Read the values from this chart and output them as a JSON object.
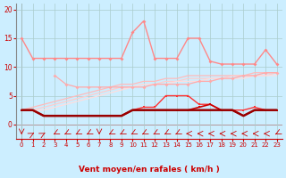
{
  "x": [
    0,
    1,
    2,
    3,
    4,
    5,
    6,
    7,
    8,
    9,
    10,
    11,
    12,
    13,
    14,
    15,
    16,
    17,
    18,
    19,
    20,
    21,
    22,
    23
  ],
  "line_gust_high": [
    15.0,
    11.5,
    11.5,
    11.5,
    11.5,
    11.5,
    11.5,
    11.5,
    11.5,
    11.5,
    16.0,
    18.0,
    11.5,
    11.5,
    11.5,
    15.0,
    15.0,
    11.0,
    10.5,
    10.5,
    10.5,
    10.5,
    13.0,
    10.5
  ],
  "line_gust_mid2": [
    null,
    null,
    null,
    8.5,
    7.0,
    6.5,
    6.5,
    6.5,
    6.5,
    6.5,
    6.5,
    6.5,
    7.0,
    7.0,
    7.0,
    7.0,
    7.5,
    7.5,
    8.0,
    8.0,
    8.5,
    8.5,
    9.0,
    9.0
  ],
  "line_trend1": [
    2.5,
    3.0,
    3.5,
    4.0,
    4.5,
    5.0,
    5.5,
    6.0,
    6.5,
    7.0,
    7.0,
    7.5,
    7.5,
    8.0,
    8.0,
    8.5,
    8.5,
    8.5,
    8.5,
    8.5,
    8.5,
    9.0,
    9.0,
    9.0
  ],
  "line_trend2": [
    2.5,
    2.5,
    3.0,
    3.5,
    4.0,
    4.5,
    5.0,
    5.5,
    6.0,
    6.5,
    6.5,
    7.0,
    7.0,
    7.5,
    7.5,
    8.0,
    8.0,
    8.0,
    8.0,
    8.5,
    8.5,
    8.5,
    8.5,
    9.0
  ],
  "line_trend3": [
    2.5,
    2.5,
    2.5,
    3.0,
    3.5,
    4.0,
    4.5,
    5.0,
    5.5,
    6.0,
    6.5,
    7.0,
    7.0,
    7.0,
    7.5,
    7.5,
    7.5,
    8.0,
    8.0,
    8.0,
    8.0,
    8.5,
    8.5,
    8.5
  ],
  "line_wind_jagged": [
    2.5,
    2.5,
    1.5,
    1.5,
    1.5,
    1.5,
    1.5,
    1.5,
    1.5,
    1.5,
    2.5,
    3.0,
    3.0,
    5.0,
    5.0,
    5.0,
    3.5,
    3.5,
    2.5,
    2.5,
    2.5,
    3.0,
    2.5,
    2.5
  ],
  "line_wind_med": [
    2.5,
    2.5,
    1.5,
    1.5,
    1.5,
    1.5,
    1.5,
    1.5,
    1.5,
    1.5,
    2.5,
    2.5,
    2.5,
    2.5,
    2.5,
    2.5,
    3.0,
    3.5,
    2.5,
    2.5,
    1.5,
    2.5,
    2.5,
    2.5
  ],
  "line_wind_low": [
    2.5,
    2.5,
    1.5,
    1.5,
    1.5,
    1.5,
    1.5,
    1.5,
    1.5,
    1.5,
    2.5,
    2.5,
    2.5,
    2.5,
    2.5,
    2.5,
    2.5,
    2.5,
    2.5,
    2.5,
    1.5,
    2.5,
    2.5,
    2.5
  ],
  "xlabel": "Vent moyen/en rafales ( km/h )",
  "ylim": [
    -2.5,
    21
  ],
  "xlim": [
    -0.5,
    23.5
  ],
  "bg_color": "#cceeff",
  "grid_color": "#aacccc",
  "arrow_angles": [
    180,
    45,
    45,
    225,
    225,
    225,
    225,
    180,
    225,
    225,
    225,
    225,
    225,
    225,
    225,
    270,
    270,
    270,
    270,
    270,
    270,
    270,
    270,
    225
  ]
}
